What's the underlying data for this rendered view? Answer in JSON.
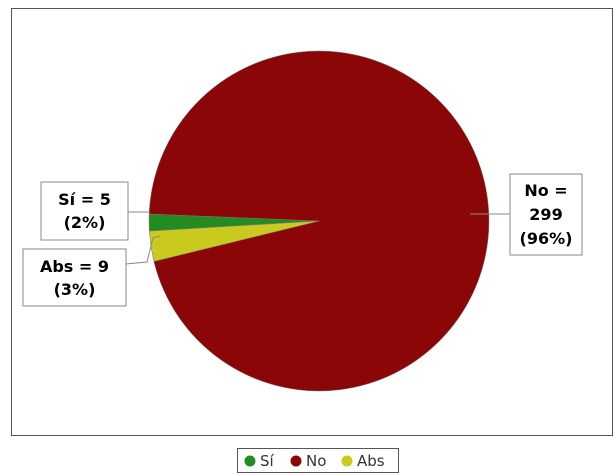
{
  "chart_data": {
    "type": "pie",
    "title": "",
    "slices": [
      {
        "name": "Sí",
        "value": 5,
        "percent": "2%",
        "label_line1": "Sí = 5",
        "label_line2": "(2%)",
        "color": "#228b22"
      },
      {
        "name": "No",
        "value": 299,
        "percent": "96%",
        "label_line1": "No =",
        "label_line2": "299",
        "label_line3": "(96%)",
        "color": "#8b0707"
      },
      {
        "name": "Abs",
        "value": 9,
        "percent": "3%",
        "label_line1": "Abs = 9",
        "label_line2": "(3%)",
        "color": "#c9c91e"
      }
    ],
    "legend": {
      "placement": "bottom",
      "items": [
        {
          "label": "Sí",
          "color": "#228b22"
        },
        {
          "label": "No",
          "color": "#8b0707"
        },
        {
          "label": "Abs",
          "color": "#c9c91e"
        }
      ]
    }
  }
}
